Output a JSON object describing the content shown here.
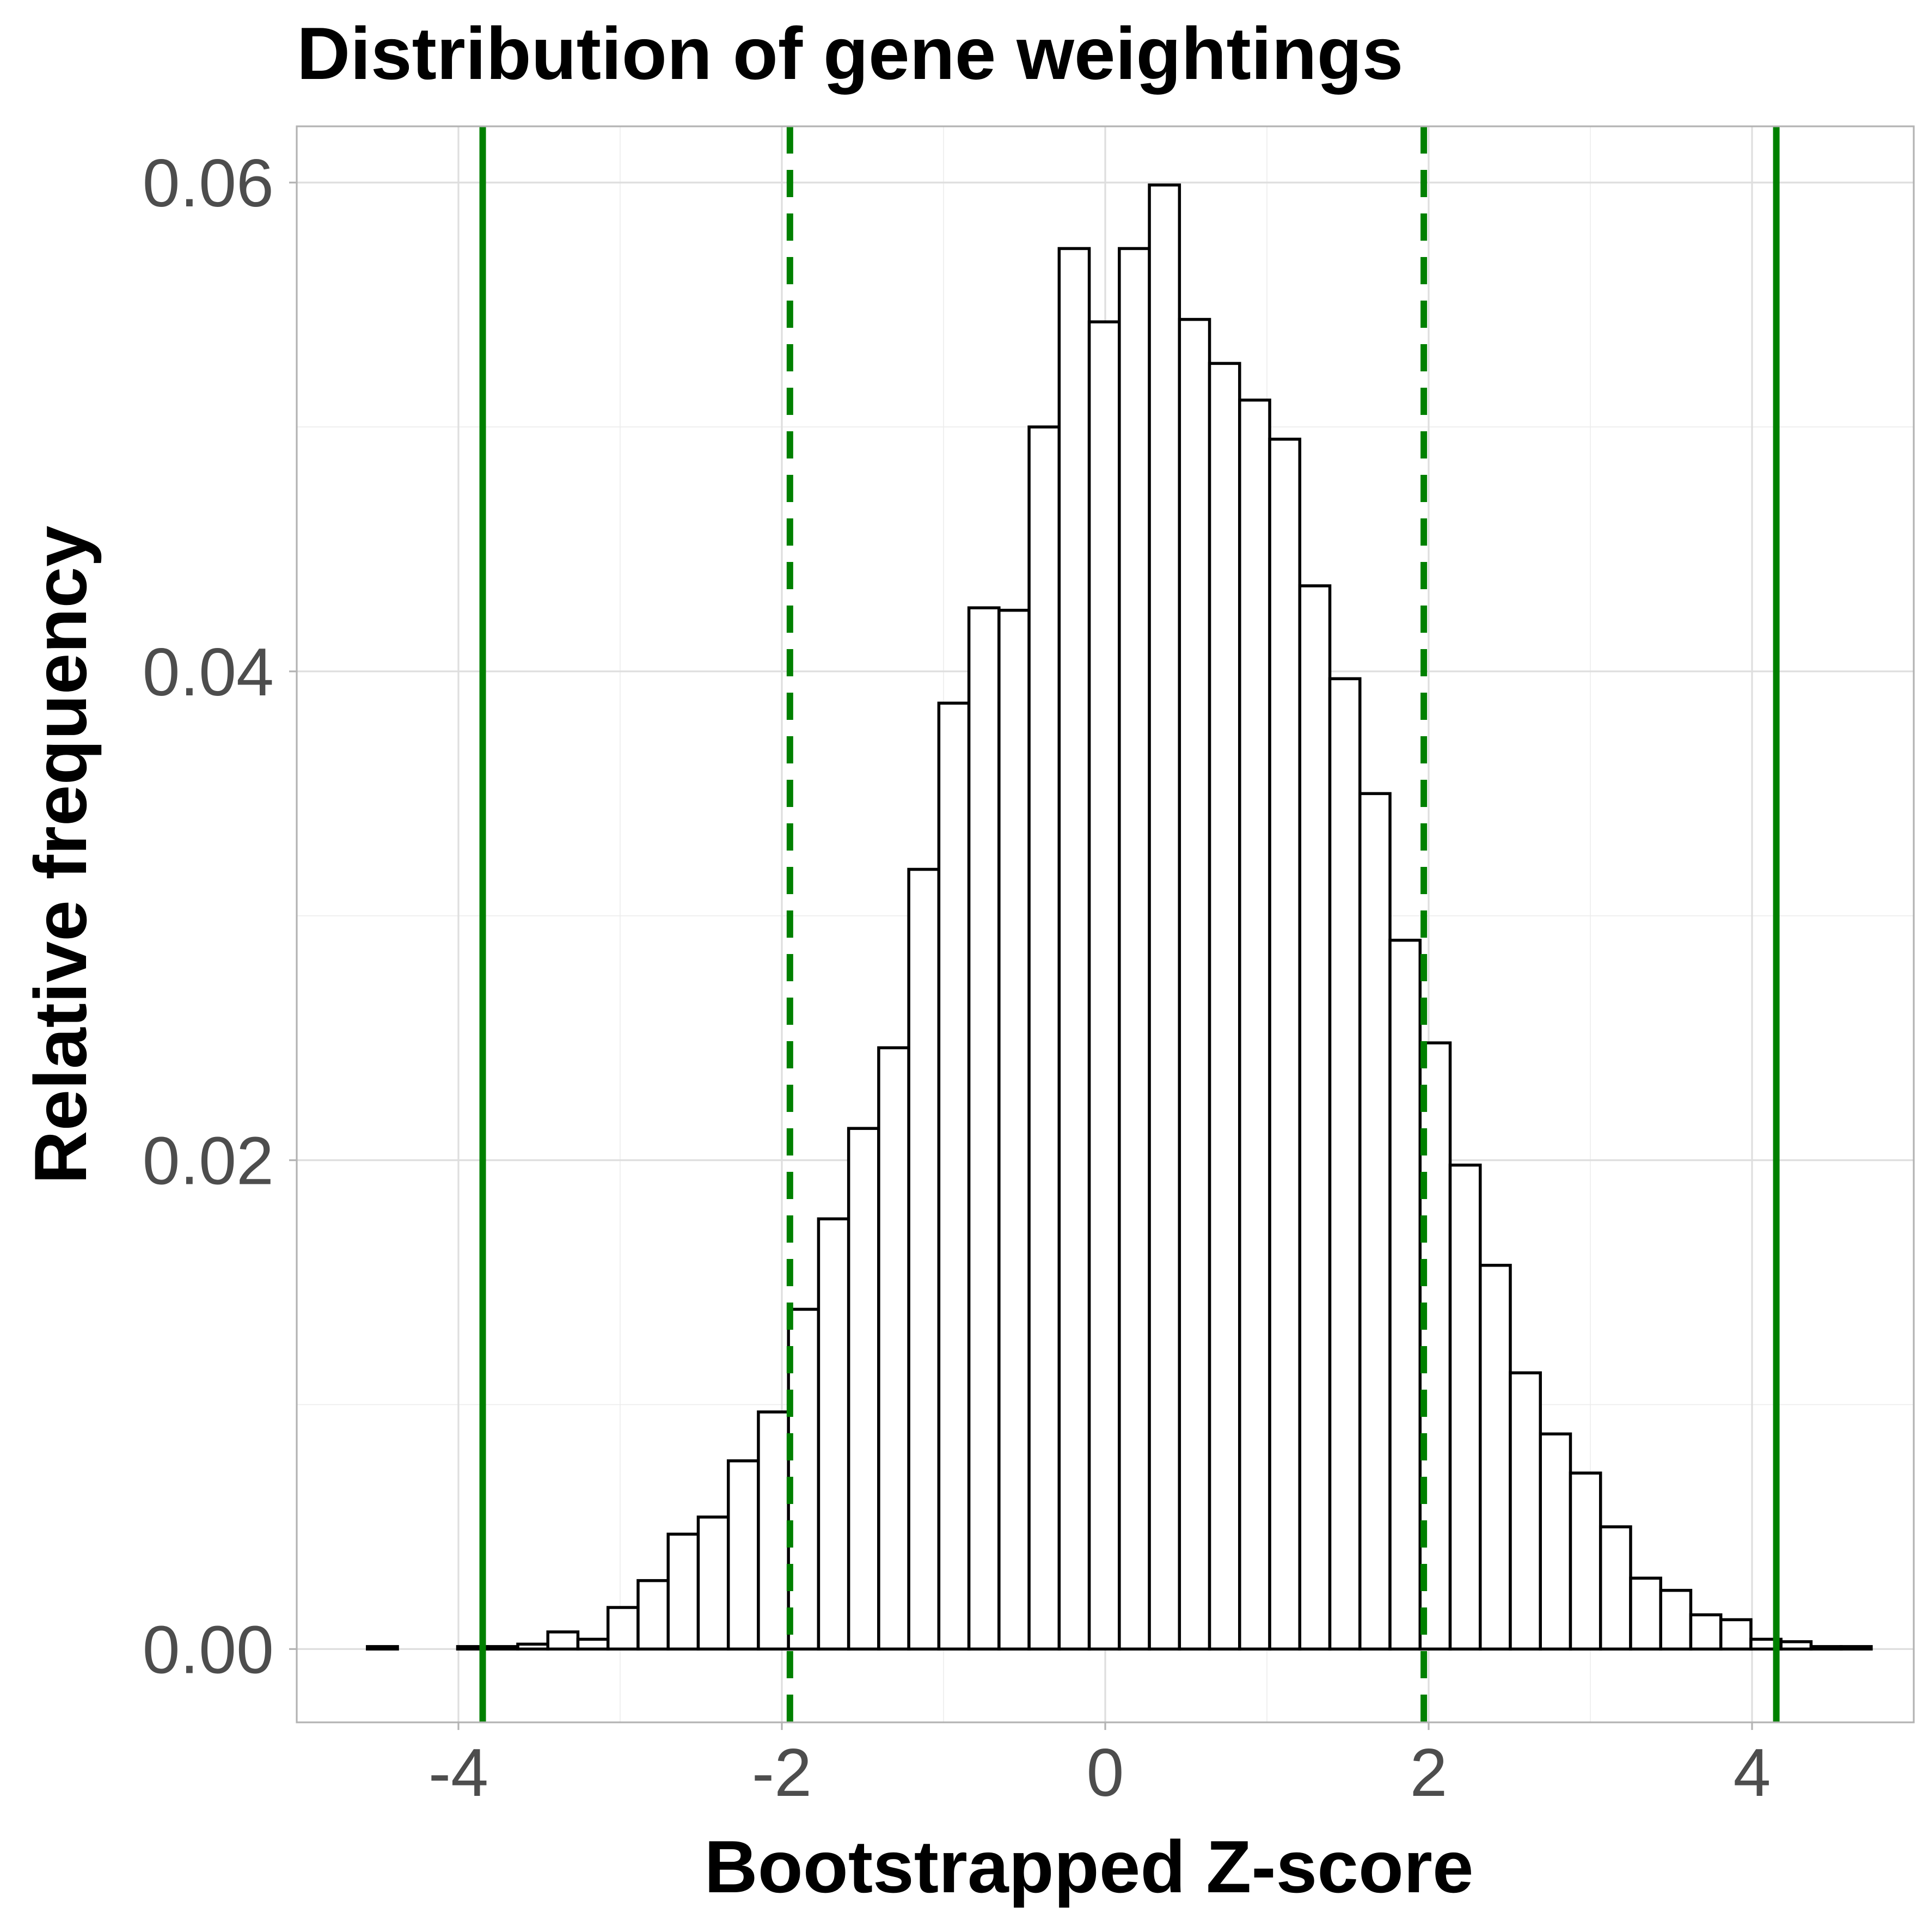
{
  "chart_data": {
    "type": "bar",
    "title": "Distribution of gene weightings",
    "xlabel": "Bootstrapped Z-score",
    "ylabel": "Relative frequency",
    "xlim": [
      -5.0,
      5.0
    ],
    "ylim": [
      -0.003,
      0.0623
    ],
    "x_ticks": [
      -4,
      -2,
      0,
      2,
      4
    ],
    "x_tick_labels": [
      "-4",
      "-2",
      "0",
      "2",
      "4"
    ],
    "y_ticks": [
      0.0,
      0.02,
      0.04,
      0.06
    ],
    "y_tick_labels": [
      "0.00",
      "0.02",
      "0.04",
      "0.06"
    ],
    "grid": true,
    "bin_width": 0.186,
    "bin_centers": [
      -4.47,
      -4.284,
      -4.098,
      -3.912,
      -3.726,
      -3.54,
      -3.354,
      -3.168,
      -2.982,
      -2.796,
      -2.61,
      -2.424,
      -2.238,
      -2.052,
      -1.866,
      -1.68,
      -1.494,
      -1.308,
      -1.122,
      -0.936,
      -0.75,
      -0.564,
      -0.378,
      -0.192,
      -0.006,
      0.18,
      0.366,
      0.552,
      0.738,
      0.924,
      1.11,
      1.296,
      1.482,
      1.668,
      1.854,
      2.04,
      2.226,
      2.412,
      2.598,
      2.784,
      2.97,
      3.156,
      3.342,
      3.528,
      3.714,
      3.9,
      4.086,
      4.272,
      4.458,
      4.644
    ],
    "values": [
      0.0001,
      0.0,
      0.0,
      0.0001,
      0.0001,
      0.0002,
      0.0007,
      0.0004,
      0.0017,
      0.0028,
      0.0047,
      0.0054,
      0.0077,
      0.0097,
      0.0139,
      0.0176,
      0.0213,
      0.0246,
      0.0319,
      0.0387,
      0.0426,
      0.0425,
      0.05,
      0.0573,
      0.0543,
      0.0573,
      0.0599,
      0.0544,
      0.0526,
      0.0511,
      0.0495,
      0.0435,
      0.0397,
      0.035,
      0.029,
      0.0248,
      0.0198,
      0.0157,
      0.0113,
      0.0088,
      0.0072,
      0.005,
      0.0029,
      0.0024,
      0.0014,
      0.0012,
      0.0004,
      0.0003,
      0.0001,
      0.0001
    ],
    "reference_lines": [
      {
        "x": -3.85,
        "style": "solid",
        "color": "#008000"
      },
      {
        "x": -1.95,
        "style": "dashed",
        "color": "#008000"
      },
      {
        "x": 1.97,
        "style": "dashed",
        "color": "#008000"
      },
      {
        "x": 4.15,
        "style": "solid",
        "color": "#008000"
      }
    ],
    "colors": {
      "bar_fill": "#ffffff",
      "bar_outline": "#000000",
      "reference_line": "#008000",
      "grid": "#dedede",
      "tick_text": "#4d4d4d"
    }
  }
}
